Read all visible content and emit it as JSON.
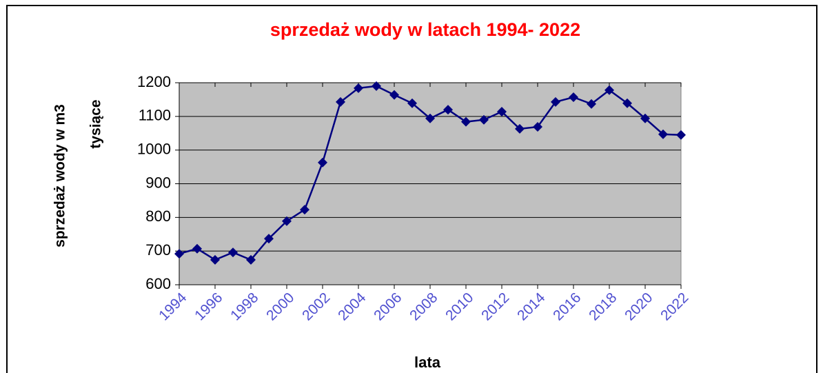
{
  "chart_data": {
    "type": "line",
    "title": "sprzedaż wody w latach 1994- 2022",
    "xlabel": "lata",
    "ylabel": [
      "sprzedaż wody w m3",
      "tysiące"
    ],
    "x": [
      1994,
      1995,
      1996,
      1997,
      1998,
      1999,
      2000,
      2001,
      2002,
      2003,
      2004,
      2005,
      2006,
      2007,
      2008,
      2009,
      2010,
      2011,
      2012,
      2013,
      2014,
      2015,
      2016,
      2017,
      2018,
      2019,
      2020,
      2021,
      2022
    ],
    "series": [
      {
        "name": "sprzedaż wody",
        "color": "#000080",
        "values": [
          692,
          707,
          674,
          696,
          674,
          737,
          789,
          823,
          963,
          1143,
          1184,
          1190,
          1164,
          1139,
          1094,
          1120,
          1084,
          1090,
          1114,
          1063,
          1069,
          1143,
          1157,
          1137,
          1178,
          1139,
          1094,
          1047,
          1045
        ]
      }
    ],
    "xlim": [
      1994,
      2022
    ],
    "xticks": [
      1994,
      1996,
      1998,
      2000,
      2002,
      2004,
      2006,
      2008,
      2010,
      2012,
      2014,
      2016,
      2018,
      2020,
      2022
    ],
    "ylim": [
      600,
      1200
    ],
    "yticks": [
      600,
      700,
      800,
      900,
      1000,
      1100,
      1200
    ],
    "grid": true
  }
}
